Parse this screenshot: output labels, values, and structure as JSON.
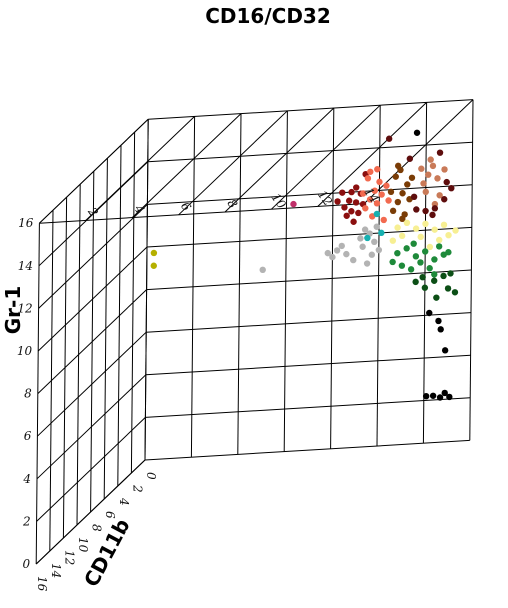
{
  "chart_data": {
    "type": "scatter",
    "dimensions": 3,
    "axes": {
      "x": {
        "label": "CD16/CD32",
        "ticks": [
          "2",
          "4",
          "6",
          "8",
          "10",
          "12",
          "14"
        ],
        "range": [
          0,
          14
        ]
      },
      "y": {
        "label": "Gr-1",
        "ticks": [
          "0",
          "2",
          "4",
          "6",
          "8",
          "10",
          "12",
          "14",
          "16"
        ],
        "range": [
          0,
          16
        ]
      },
      "z": {
        "label": "CD11b",
        "ticks": [
          "0",
          "2",
          "4",
          "6",
          "8",
          "10",
          "12",
          "14",
          "16"
        ],
        "range": [
          0,
          16
        ]
      }
    },
    "series": [
      {
        "name": "dark red",
        "color": "#8b0f0f",
        "points": [
          [
            8.6,
            10.9
          ],
          [
            8.8,
            11.1
          ],
          [
            9.0,
            11.5
          ],
          [
            9.2,
            11.9
          ],
          [
            8.7,
            11.6
          ],
          [
            9.1,
            11.0
          ],
          [
            8.9,
            10.6
          ],
          [
            9.3,
            11.4
          ],
          [
            8.8,
            12.0
          ],
          [
            9.0,
            12.2
          ],
          [
            8.5,
            11.3
          ],
          [
            8.4,
            12.0
          ],
          [
            9.4,
            12.8
          ],
          [
            8.2,
            11.6
          ]
        ]
      },
      {
        "name": "salmon",
        "color": "#f26a4f",
        "points": [
          [
            9.4,
            11.2
          ],
          [
            9.6,
            11.6
          ],
          [
            9.8,
            12.0
          ],
          [
            10.0,
            12.4
          ],
          [
            9.5,
            12.6
          ],
          [
            9.9,
            11.4
          ],
          [
            10.1,
            11.8
          ],
          [
            9.7,
            10.8
          ],
          [
            10.2,
            10.6
          ],
          [
            9.6,
            12.9
          ],
          [
            10.3,
            12.2
          ],
          [
            9.3,
            11.9
          ],
          [
            9.9,
            13.0
          ],
          [
            10.4,
            11.5
          ]
        ]
      },
      {
        "name": "brown",
        "color": "#7a3c06",
        "points": [
          [
            10.6,
            11.0
          ],
          [
            10.8,
            11.4
          ],
          [
            11.0,
            11.8
          ],
          [
            11.2,
            12.2
          ],
          [
            10.7,
            12.6
          ],
          [
            11.1,
            10.8
          ],
          [
            10.9,
            12.9
          ],
          [
            11.3,
            11.5
          ],
          [
            10.5,
            11.9
          ],
          [
            11.0,
            10.6
          ],
          [
            11.4,
            12.5
          ],
          [
            10.8,
            13.1
          ]
        ]
      },
      {
        "name": "light brown",
        "color": "#c97a58",
        "points": [
          [
            11.9,
            12.2
          ],
          [
            12.1,
            12.6
          ],
          [
            12.3,
            13.0
          ],
          [
            12.5,
            12.4
          ],
          [
            12.0,
            11.8
          ],
          [
            12.6,
            11.6
          ],
          [
            12.2,
            13.3
          ],
          [
            12.8,
            12.8
          ],
          [
            12.4,
            11.2
          ],
          [
            11.8,
            12.9
          ]
        ]
      },
      {
        "name": "dark red-brown",
        "color": "#5e0d0d",
        "points": [
          [
            11.6,
            11.0
          ],
          [
            12.0,
            10.9
          ],
          [
            12.4,
            11.0
          ],
          [
            12.8,
            11.4
          ],
          [
            11.5,
            11.6
          ],
          [
            12.9,
            12.2
          ],
          [
            12.6,
            13.6
          ],
          [
            11.3,
            13.4
          ],
          [
            10.4,
            14.4
          ],
          [
            13.1,
            11.9
          ],
          [
            12.3,
            10.7
          ]
        ]
      },
      {
        "name": "gray",
        "color": "#b3b3b3",
        "points": [
          [
            9.2,
            9.8
          ],
          [
            9.4,
            10.2
          ],
          [
            9.6,
            10.0
          ],
          [
            9.8,
            9.6
          ],
          [
            9.3,
            9.4
          ],
          [
            9.7,
            9.0
          ],
          [
            8.2,
            9.3
          ],
          [
            8.0,
            9.0
          ],
          [
            8.6,
            9.1
          ],
          [
            8.9,
            8.8
          ],
          [
            9.5,
            8.6
          ],
          [
            8.4,
            9.5
          ],
          [
            7.8,
            9.2
          ],
          [
            9.9,
            10.3
          ],
          [
            10.0,
            9.2
          ],
          [
            5.0,
            8.6
          ]
        ]
      },
      {
        "name": "light yellow",
        "color": "#f7ef93",
        "points": [
          [
            10.8,
            10.2
          ],
          [
            11.2,
            10.4
          ],
          [
            11.6,
            10.1
          ],
          [
            12.0,
            10.3
          ],
          [
            12.4,
            10.0
          ],
          [
            12.8,
            10.2
          ],
          [
            11.0,
            9.8
          ],
          [
            11.8,
            9.7
          ],
          [
            12.6,
            9.5
          ],
          [
            13.0,
            9.7
          ],
          [
            13.3,
            9.9
          ],
          [
            10.6,
            9.6
          ],
          [
            12.2,
            9.2
          ]
        ]
      },
      {
        "name": "green",
        "color": "#1e8a3a",
        "points": [
          [
            10.8,
            9.0
          ],
          [
            11.2,
            9.2
          ],
          [
            11.6,
            8.8
          ],
          [
            12.0,
            9.0
          ],
          [
            12.4,
            8.6
          ],
          [
            12.8,
            8.8
          ],
          [
            11.0,
            8.4
          ],
          [
            11.4,
            8.2
          ],
          [
            11.8,
            8.5
          ],
          [
            12.2,
            8.2
          ],
          [
            12.6,
            9.2
          ],
          [
            13.0,
            8.9
          ],
          [
            10.6,
            8.6
          ],
          [
            11.5,
            9.4
          ],
          [
            12.4,
            7.9
          ]
        ]
      },
      {
        "name": "dark green",
        "color": "#0c4f16",
        "points": [
          [
            11.6,
            7.6
          ],
          [
            12.0,
            7.3
          ],
          [
            12.4,
            7.6
          ],
          [
            12.8,
            7.8
          ],
          [
            13.0,
            7.2
          ],
          [
            13.3,
            7.0
          ],
          [
            12.5,
            6.8
          ],
          [
            13.1,
            7.9
          ],
          [
            11.9,
            7.8
          ]
        ]
      },
      {
        "name": "black",
        "color": "#000000",
        "points": [
          [
            12.2,
            6.1
          ],
          [
            12.6,
            5.7
          ],
          [
            12.7,
            5.3
          ],
          [
            12.9,
            4.3
          ],
          [
            12.4,
            2.2
          ],
          [
            12.7,
            2.1
          ],
          [
            12.9,
            2.3
          ],
          [
            13.1,
            2.1
          ],
          [
            12.1,
            2.2
          ],
          [
            11.6,
            14.6
          ]
        ]
      },
      {
        "name": "teal",
        "color": "#16b0b0",
        "points": [
          [
            9.9,
            10.9
          ],
          [
            9.5,
            9.8
          ],
          [
            10.1,
            10.0
          ]
        ]
      },
      {
        "name": "pink",
        "color": "#c0306a",
        "points": [
          [
            6.3,
            11.6
          ]
        ]
      },
      {
        "name": "olive",
        "color": "#b5b000",
        "points": [
          [
            0.3,
            9.7
          ],
          [
            0.3,
            9.1
          ]
        ]
      }
    ]
  }
}
